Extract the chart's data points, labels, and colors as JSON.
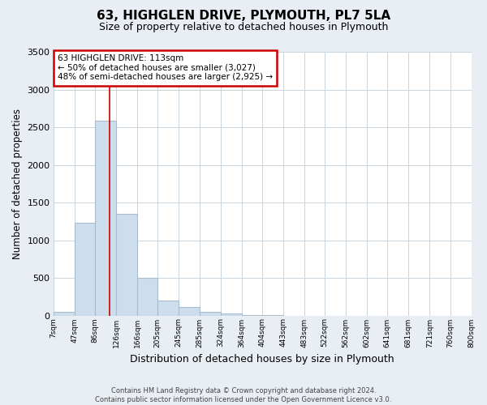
{
  "title": "63, HIGHGLEN DRIVE, PLYMOUTH, PL7 5LA",
  "subtitle": "Size of property relative to detached houses in Plymouth",
  "xlabel": "Distribution of detached houses by size in Plymouth",
  "ylabel": "Number of detached properties",
  "bar_color": "#ccdded",
  "bar_edge_color": "#aabbcc",
  "annotation_text_line1": "63 HIGHGLEN DRIVE: 113sqm",
  "annotation_text_line2": "← 50% of detached houses are smaller (3,027)",
  "annotation_text_line3": "48% of semi-detached houses are larger (2,925) →",
  "vline_color": "#cc0000",
  "vline_x": 113,
  "bin_edges": [
    7,
    47,
    86,
    126,
    166,
    205,
    245,
    285,
    324,
    364,
    404,
    443,
    483,
    522,
    562,
    602,
    641,
    681,
    721,
    760,
    800
  ],
  "bin_labels": [
    "7sqm",
    "47sqm",
    "86sqm",
    "126sqm",
    "166sqm",
    "205sqm",
    "245sqm",
    "285sqm",
    "324sqm",
    "364sqm",
    "404sqm",
    "443sqm",
    "483sqm",
    "522sqm",
    "562sqm",
    "602sqm",
    "641sqm",
    "681sqm",
    "721sqm",
    "760sqm",
    "800sqm"
  ],
  "bar_heights": [
    50,
    1230,
    2590,
    1350,
    500,
    200,
    110,
    50,
    30,
    5,
    3,
    0,
    0,
    0,
    0,
    0,
    0,
    0,
    0,
    0
  ],
  "ylim": [
    0,
    3500
  ],
  "yticks": [
    0,
    500,
    1000,
    1500,
    2000,
    2500,
    3000,
    3500
  ],
  "footer_line1": "Contains HM Land Registry data © Crown copyright and database right 2024.",
  "footer_line2": "Contains public sector information licensed under the Open Government Licence v3.0.",
  "background_color": "#e8eef4",
  "plot_bg_color": "#ffffff",
  "grid_color": "#c8d4de"
}
